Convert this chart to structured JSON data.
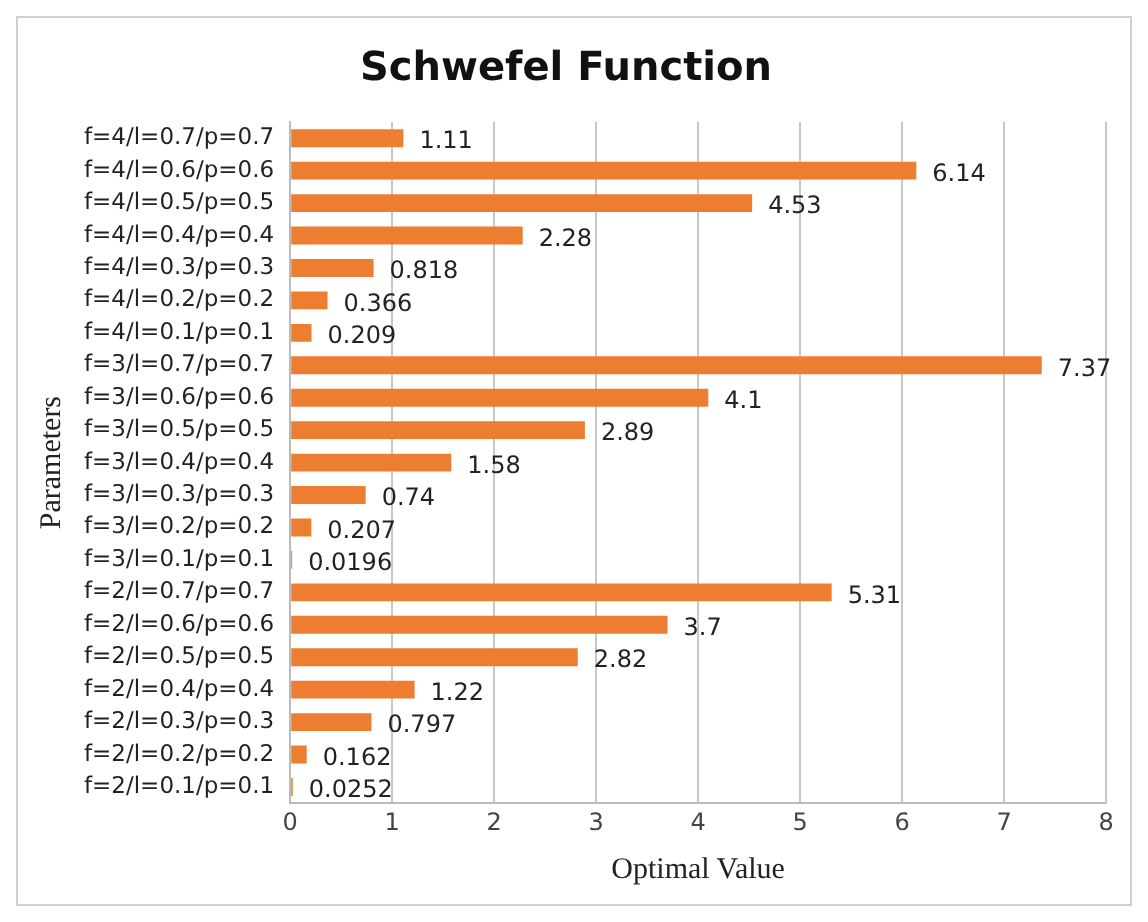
{
  "chart_data": {
    "type": "bar",
    "orientation": "horizontal",
    "title": "Schwefel Function",
    "xlabel": "Optimal Value",
    "ylabel": "Parameters",
    "categories": [
      "f=4/l=0.7/p=0.7",
      "f=4/l=0.6/p=0.6",
      "f=4/l=0.5/p=0.5",
      "f=4/l=0.4/p=0.4",
      "f=4/l=0.3/p=0.3",
      "f=4/l=0.2/p=0.2",
      "f=4/l=0.1/p=0.1",
      "f=3/l=0.7/p=0.7",
      "f=3/l=0.6/p=0.6",
      "f=3/l=0.5/p=0.5",
      "f=3/l=0.4/p=0.4",
      "f=3/l=0.3/p=0.3",
      "f=3/l=0.2/p=0.2",
      "f=3/l=0.1/p=0.1",
      "f=2/l=0.7/p=0.7",
      "f=2/l=0.6/p=0.6",
      "f=2/l=0.5/p=0.5",
      "f=2/l=0.4/p=0.4",
      "f=2/l=0.3/p=0.3",
      "f=2/l=0.2/p=0.2",
      "f=2/l=0.1/p=0.1"
    ],
    "values": [
      1.11,
      6.14,
      4.53,
      2.28,
      0.818,
      0.366,
      0.209,
      7.37,
      4.1,
      2.89,
      1.58,
      0.74,
      0.207,
      0.0196,
      5.31,
      3.7,
      2.82,
      1.22,
      0.797,
      0.162,
      0.0252
    ],
    "color": "#ed7d31",
    "data_labels": true,
    "grid": "x",
    "legend": false,
    "xlim": [
      0,
      8
    ],
    "xticks": [
      0,
      1,
      2,
      3,
      4,
      5,
      6,
      7,
      8
    ]
  }
}
